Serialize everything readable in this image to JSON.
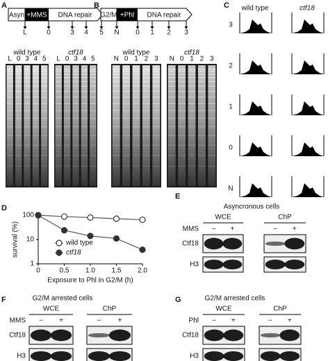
{
  "panels": {
    "A": {
      "label": "A",
      "schematic": [
        "Asyn",
        "+MMS",
        "DNA repair"
      ],
      "timepoints": [
        "L",
        "0",
        "3",
        "4",
        "5"
      ],
      "gels": [
        {
          "title": "wild type",
          "lanes": [
            "L",
            "0",
            "3",
            "4",
            "5"
          ]
        },
        {
          "title": "ctf18",
          "lanes": [
            "L",
            "0",
            "3",
            "4",
            "5"
          ]
        }
      ]
    },
    "B": {
      "label": "B",
      "schematic": [
        "G2/M",
        "+Phl",
        "DNA repair"
      ],
      "timepoints": [
        "N",
        "0",
        "1",
        "2",
        "3"
      ],
      "gels": [
        {
          "title": "wild type",
          "lanes": [
            "N",
            "0",
            "1",
            "2",
            "3"
          ]
        },
        {
          "title": "ctf18",
          "lanes": [
            "N",
            "0",
            "1",
            "2",
            "3"
          ]
        }
      ]
    },
    "C": {
      "label": "C",
      "columns": [
        "wild type",
        "ctf18"
      ],
      "rows": [
        "3",
        "2",
        "1",
        "0",
        "N"
      ]
    },
    "D": {
      "label": "D"
    },
    "E": {
      "label": "E",
      "title": "Asyncronous cells",
      "columns": [
        "WCE",
        "ChP"
      ],
      "treatment": "MMS",
      "signs": [
        "−",
        "+",
        "−",
        "+"
      ],
      "rows": [
        "Ctf18",
        "H3"
      ]
    },
    "F": {
      "label": "F",
      "title": "G2/M arrested cells",
      "columns": [
        "WCE",
        "ChP"
      ],
      "treatment": "MMS",
      "signs": [
        "−",
        "+",
        "−",
        "+"
      ],
      "rows": [
        "Ctf18",
        "H3"
      ]
    },
    "G": {
      "label": "G",
      "title": "G2/M arrested cells",
      "columns": [
        "WCE",
        "ChP"
      ],
      "treatment": "Phl",
      "signs": [
        "−",
        "+",
        "−",
        "+"
      ],
      "rows": [
        "Ctf18",
        "H3"
      ]
    }
  },
  "chart_data": {
    "type": "line",
    "xlabel": "Exposure to Phl in G2/M (h)",
    "ylabel": "survival (%)",
    "x": [
      0,
      0.5,
      1,
      1.5,
      2
    ],
    "series": [
      {
        "name": "wild type",
        "color": "#ffffff",
        "values": [
          100,
          88,
          80,
          72,
          65
        ]
      },
      {
        "name": "ctf18",
        "color": "#333333",
        "values": [
          100,
          24,
          14,
          11,
          3.8
        ],
        "errors": [
          0,
          5,
          3,
          1.5,
          0.5
        ]
      }
    ],
    "xlim": [
      0,
      2
    ],
    "ylim": [
      1,
      100
    ],
    "log_y": true,
    "xticks": [
      0,
      0.5,
      {
        "value": 1,
        "label": "1.0"
      },
      1.5,
      {
        "value": 2,
        "label": "2.0"
      }
    ],
    "yticks": [
      1,
      10,
      100
    ],
    "legend": "lower left"
  }
}
